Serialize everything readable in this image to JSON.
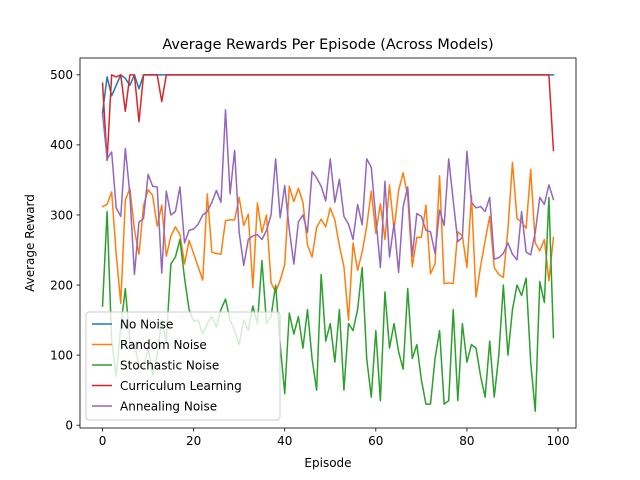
{
  "chart_data": {
    "type": "line",
    "title": "Average Rewards Per Episode (Across Models)",
    "xlabel": "Episode",
    "ylabel": "Average Reward",
    "xlim": [
      -4.95,
      103.95
    ],
    "ylim": [
      -4,
      524
    ],
    "xticks": [
      0,
      20,
      40,
      60,
      80,
      100
    ],
    "yticks": [
      0,
      100,
      200,
      300,
      400,
      500
    ],
    "grid": false,
    "legend_position": "lower-left",
    "series": [
      {
        "name": "No Noise",
        "color": "#1f77b4",
        "values": [
          446,
          497,
          470,
          485,
          500,
          495,
          485,
          500,
          480,
          500,
          500,
          500,
          500,
          500,
          500,
          500,
          500,
          500,
          500,
          500,
          500,
          500,
          500,
          500,
          500,
          500,
          500,
          500,
          500,
          500,
          500,
          500,
          500,
          500,
          500,
          500,
          500,
          500,
          500,
          500,
          500,
          500,
          500,
          500,
          500,
          500,
          500,
          500,
          500,
          500,
          500,
          500,
          500,
          500,
          500,
          500,
          500,
          500,
          500,
          500,
          500,
          500,
          500,
          500,
          500,
          500,
          500,
          500,
          500,
          500,
          500,
          500,
          500,
          500,
          500,
          500,
          500,
          500,
          500,
          500,
          500,
          500,
          500,
          500,
          500,
          500,
          500,
          500,
          500,
          500,
          500,
          500,
          500,
          500,
          500,
          500,
          500,
          500,
          500,
          500
        ]
      },
      {
        "name": "Random Noise",
        "color": "#ff7f0e",
        "values": [
          312,
          315,
          333,
          244,
          174,
          321,
          338,
          279,
          244,
          313,
          336,
          328,
          284,
          314,
          241,
          270,
          283,
          272,
          230,
          264,
          245,
          226,
          207,
          330,
          247,
          245,
          244,
          292,
          293,
          293,
          325,
          285,
          301,
          196,
          317,
          275,
          300,
          203,
          190,
          207,
          229,
          341,
          319,
          338,
          318,
          257,
          240,
          282,
          294,
          283,
          310,
          293,
          256,
          226,
          150,
          260,
          221,
          247,
          284,
          334,
          274,
          316,
          265,
          343,
          279,
          335,
          360,
          327,
          226,
          268,
          268,
          314,
          216,
          230,
          356,
          202,
          203,
          202,
          276,
          270,
          225,
          327,
          183,
          227,
          263,
          298,
          225,
          215,
          211,
          279,
          375,
          295,
          290,
          281,
          365,
          260,
          249,
          265,
          206,
          268
        ]
      },
      {
        "name": "Stochastic Noise",
        "color": "#2ca02c",
        "values": [
          170,
          305,
          120,
          70,
          140,
          195,
          120,
          115,
          85,
          80,
          110,
          72,
          100,
          150,
          120,
          230,
          240,
          265,
          210,
          165,
          148,
          150,
          130,
          145,
          155,
          140,
          165,
          180,
          150,
          135,
          115,
          150,
          135,
          170,
          145,
          235,
          145,
          155,
          200,
          115,
          45,
          160,
          130,
          155,
          110,
          165,
          95,
          50,
          215,
          120,
          145,
          90,
          165,
          50,
          145,
          135,
          165,
          225,
          95,
          40,
          135,
          35,
          190,
          110,
          145,
          105,
          80,
          195,
          95,
          115,
          65,
          30,
          30,
          95,
          135,
          30,
          35,
          165,
          35,
          145,
          90,
          115,
          110,
          70,
          40,
          120,
          40,
          100,
          200,
          100,
          165,
          200,
          185,
          210,
          90,
          20,
          205,
          175,
          325,
          125
        ]
      },
      {
        "name": "Curriculum Learning",
        "color": "#d62728",
        "values": [
          488,
          378,
          500,
          497,
          500,
          448,
          500,
          500,
          433,
          500,
          500,
          500,
          500,
          462,
          500,
          500,
          500,
          500,
          500,
          500,
          500,
          500,
          500,
          500,
          500,
          500,
          500,
          500,
          500,
          500,
          500,
          500,
          500,
          500,
          500,
          500,
          500,
          500,
          500,
          500,
          500,
          500,
          500,
          500,
          500,
          500,
          500,
          500,
          500,
          500,
          500,
          500,
          500,
          500,
          500,
          500,
          500,
          500,
          500,
          500,
          500,
          500,
          500,
          500,
          500,
          500,
          500,
          500,
          500,
          500,
          500,
          500,
          500,
          500,
          500,
          500,
          500,
          500,
          500,
          500,
          500,
          500,
          500,
          500,
          500,
          500,
          500,
          500,
          500,
          500,
          500,
          500,
          500,
          500,
          500,
          500,
          500,
          500,
          500,
          392
        ]
      },
      {
        "name": "Annealing Noise",
        "color": "#9467bd",
        "values": [
          445,
          380,
          390,
          310,
          298,
          395,
          330,
          215,
          290,
          295,
          358,
          341,
          340,
          217,
          334,
          300,
          305,
          340,
          260,
          278,
          280,
          287,
          300,
          305,
          318,
          335,
          318,
          450,
          330,
          392,
          275,
          228,
          265,
          270,
          272,
          265,
          278,
          300,
          380,
          296,
          342,
          279,
          230,
          290,
          300,
          275,
          362,
          353,
          341,
          320,
          380,
          318,
          351,
          298,
          287,
          265,
          315,
          286,
          380,
          368,
          296,
          225,
          348,
          240,
          288,
          218,
          312,
          340,
          241,
          302,
          298,
          278,
          276,
          245,
          307,
          285,
          380,
          320,
          262,
          268,
          391,
          318,
          310,
          312,
          305,
          325,
          237,
          239,
          245,
          260,
          244,
          236,
          305,
          247,
          243,
          275,
          325,
          315,
          343,
          322
        ]
      }
    ]
  }
}
